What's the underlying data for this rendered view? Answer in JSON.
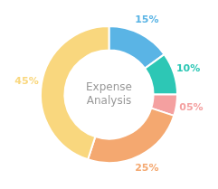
{
  "chart_data": {
    "type": "donut",
    "values": [
      15,
      10,
      5,
      25,
      45
    ],
    "value_labels": [
      "15%",
      "10%",
      "05%",
      "25%",
      "45%"
    ],
    "colors": [
      "#5ab4e5",
      "#2dc7b5",
      "#f4a0a0",
      "#f4a870",
      "#f9d77e"
    ],
    "data_labels": true,
    "annotations": [
      "Expense",
      "Analysis"
    ]
  }
}
